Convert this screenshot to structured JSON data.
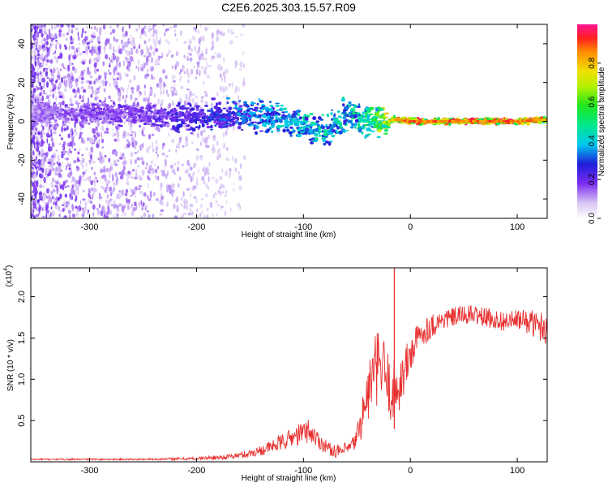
{
  "title": "C2E6.2025.303.15.57.R09",
  "chart_data": [
    {
      "type": "heatmap",
      "name": "spectrogram",
      "xlabel": "Height of straight line (km)",
      "ylabel": "Frequency (Hz)",
      "xlim": [
        -355,
        128
      ],
      "ylim": [
        -50,
        50
      ],
      "xticks": [
        -300,
        -200,
        -100,
        0,
        100
      ],
      "yticks": [
        -40,
        -20,
        0,
        20,
        40
      ],
      "colorbar": {
        "label": "Normalized spectral amplitude",
        "range": [
          0,
          1
        ],
        "ticks": [
          "0.0",
          "0.2",
          "0.4",
          "0.6",
          "0.8"
        ],
        "tick_values": [
          0.0,
          0.2,
          0.4,
          0.6,
          0.8
        ]
      },
      "ridge": {
        "x": [
          -355,
          -300,
          -250,
          -215,
          -180,
          -150,
          -120,
          -100,
          -80,
          -60,
          -40,
          -25,
          -15,
          0,
          50,
          100,
          128
        ],
        "freq": [
          5,
          4,
          4,
          2,
          3,
          4,
          2,
          -2,
          -5,
          4,
          0,
          -1,
          1,
          0,
          0,
          0,
          1
        ],
        "amplitude": [
          0.15,
          0.18,
          0.2,
          0.25,
          0.3,
          0.35,
          0.4,
          0.45,
          0.45,
          0.45,
          0.5,
          0.7,
          0.85,
          0.9,
          0.9,
          0.9,
          0.85
        ]
      }
    },
    {
      "type": "line",
      "name": "snr",
      "xlabel": "Height of straight line (km)",
      "ylabel": "SNR (10 * v/v)",
      "scale_label": "(x10",
      "scale_exp": "4",
      "scale_close": ")",
      "xlim": [
        -355,
        128
      ],
      "ylim": [
        0,
        2.35
      ],
      "xticks": [
        -300,
        -200,
        -100,
        0,
        100
      ],
      "yticks": [
        0.5,
        1.0,
        1.5,
        2.0
      ],
      "ytick_labels": [
        "0.5",
        "1.0",
        "1.5",
        "2.0"
      ],
      "series": [
        {
          "name": "SNR",
          "color": "#e83030",
          "x": [
            -355,
            -250,
            -200,
            -170,
            -150,
            -130,
            -110,
            -95,
            -85,
            -75,
            -65,
            -55,
            -50,
            -45,
            -40,
            -35,
            -30,
            -25,
            -20,
            -15,
            -10,
            -5,
            0,
            5,
            10,
            20,
            30,
            40,
            50,
            60,
            70,
            80,
            90,
            100,
            110,
            120,
            128
          ],
          "y": [
            0.03,
            0.03,
            0.04,
            0.06,
            0.1,
            0.18,
            0.3,
            0.38,
            0.25,
            0.15,
            0.12,
            0.18,
            0.3,
            0.55,
            0.8,
            1.05,
            1.15,
            1.1,
            0.9,
            0.85,
            0.95,
            1.1,
            1.3,
            1.45,
            1.55,
            1.65,
            1.72,
            1.75,
            1.78,
            1.78,
            1.75,
            1.72,
            1.7,
            1.72,
            1.7,
            1.65,
            1.62
          ],
          "noise": [
            0.01,
            0.01,
            0.02,
            0.03,
            0.05,
            0.08,
            0.12,
            0.15,
            0.1,
            0.08,
            0.08,
            0.1,
            0.15,
            0.25,
            0.35,
            0.45,
            0.45,
            0.45,
            0.4,
            0.4,
            0.35,
            0.3,
            0.25,
            0.2,
            0.18,
            0.15,
            0.12,
            0.12,
            0.12,
            0.12,
            0.12,
            0.12,
            0.12,
            0.12,
            0.15,
            0.18,
            0.2
          ],
          "spike": {
            "x": -15,
            "y": 2.35
          }
        }
      ]
    }
  ]
}
